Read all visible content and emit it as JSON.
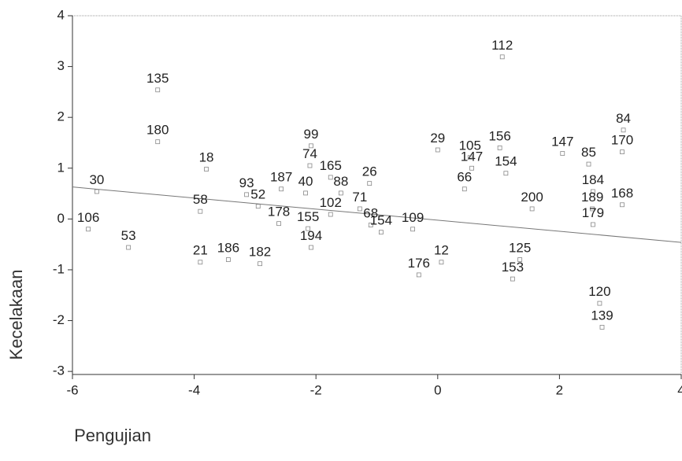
{
  "chart_data": {
    "type": "scatter",
    "x_label": "Pengujian",
    "y_label": "Kecelakaan",
    "xlim": [
      -6,
      4
    ],
    "ylim": [
      -3.06,
      4
    ],
    "xticks": [
      -6,
      -4,
      -2,
      0,
      2,
      4
    ],
    "yticks": [
      -3,
      -2,
      -1,
      0,
      1,
      2,
      3,
      4
    ],
    "marker_color": "#888888",
    "label_color": "#222222",
    "fit_line": {
      "x": [
        -6,
        4
      ],
      "y": [
        0.63,
        -0.46
      ],
      "color": "#777777"
    },
    "points": [
      {
        "label": "112",
        "x": 1.06,
        "y": 3.19
      },
      {
        "label": "135",
        "x": -4.6,
        "y": 2.54
      },
      {
        "label": "180",
        "x": -4.6,
        "y": 1.52
      },
      {
        "label": "18",
        "x": -3.8,
        "y": 0.98
      },
      {
        "label": "30",
        "x": -5.6,
        "y": 0.54
      },
      {
        "label": "58",
        "x": -3.9,
        "y": 0.15
      },
      {
        "label": "106",
        "x": -5.74,
        "y": -0.2
      },
      {
        "label": "53",
        "x": -5.08,
        "y": -0.56
      },
      {
        "label": "21",
        "x": -3.9,
        "y": -0.85
      },
      {
        "label": "186",
        "x": -3.44,
        "y": -0.8
      },
      {
        "label": "182",
        "x": -2.92,
        "y": -0.88
      },
      {
        "label": "84",
        "x": 3.05,
        "y": 1.75
      },
      {
        "label": "170",
        "x": 3.03,
        "y": 1.32
      },
      {
        "label": "168",
        "x": 3.03,
        "y": 0.28
      },
      {
        "label": "184",
        "x": 2.55,
        "y": 0.54
      },
      {
        "label": "189",
        "x": 2.54,
        "y": 0.2
      },
      {
        "label": "85",
        "x": 2.48,
        "y": 1.08
      },
      {
        "label": "200",
        "x": 1.55,
        "y": 0.2
      },
      {
        "label": "153",
        "x": 1.23,
        "y": -1.18
      },
      {
        "label": "176",
        "x": -0.31,
        "y": -1.1
      },
      {
        "label": "12",
        "x": 0.06,
        "y": -0.85
      },
      {
        "label": "147",
        "x": 0.56,
        "y": 1.0
      },
      {
        "label": "29",
        "x": 0.0,
        "y": 1.36
      },
      {
        "label": "105",
        "x": 0.53,
        "y": 1.21
      },
      {
        "label": "66",
        "x": 0.44,
        "y": 0.59
      },
      {
        "label": "99",
        "x": -2.08,
        "y": 1.44
      },
      {
        "label": "74",
        "x": -2.1,
        "y": 1.05
      },
      {
        "label": "165",
        "x": -1.76,
        "y": 0.82
      },
      {
        "label": "40",
        "x": -2.17,
        "y": 0.51
      },
      {
        "label": "102",
        "x": -1.76,
        "y": 0.09
      },
      {
        "label": "88",
        "x": -1.59,
        "y": 0.51
      },
      {
        "label": "71",
        "x": -1.28,
        "y": 0.2
      },
      {
        "label": "68",
        "x": -1.1,
        "y": -0.12
      },
      {
        "label": "155",
        "x": -2.13,
        "y": -0.19
      },
      {
        "label": "178",
        "x": -2.61,
        "y": -0.09
      },
      {
        "label": "52",
        "x": -2.95,
        "y": 0.25
      },
      {
        "label": "93",
        "x": -3.14,
        "y": 0.48
      },
      {
        "label": "109",
        "x": -0.41,
        "y": -0.2
      },
      {
        "label": "154",
        "x": -0.93,
        "y": -0.26
      },
      {
        "label": "125",
        "x": 1.35,
        "y": -0.8
      },
      {
        "label": "179",
        "x": 2.55,
        "y": -0.11
      },
      {
        "label": "156",
        "x": 1.02,
        "y": 1.4
      },
      {
        "label": "26",
        "x": -1.12,
        "y": 0.7
      },
      {
        "label": "187",
        "x": -2.57,
        "y": 0.59
      },
      {
        "label": "194",
        "x": -2.08,
        "y": -0.56
      },
      {
        "label": "120",
        "x": 2.66,
        "y": -1.66
      },
      {
        "label": "139",
        "x": 2.7,
        "y": -2.13
      },
      {
        "label": "147",
        "x": 2.05,
        "y": 1.29
      },
      {
        "label": "154",
        "x": 1.12,
        "y": 0.9
      }
    ]
  }
}
